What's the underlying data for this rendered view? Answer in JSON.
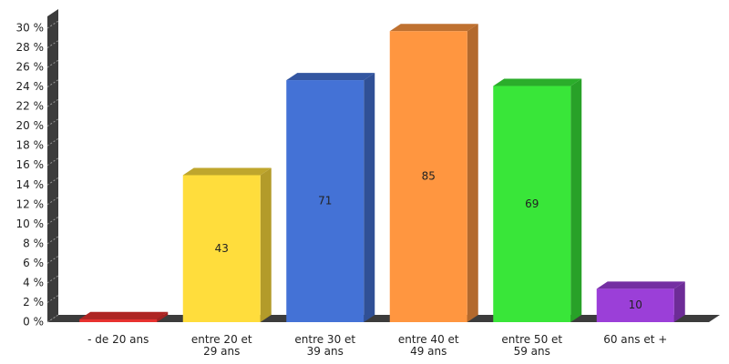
{
  "chart_data": {
    "type": "bar3d",
    "categories": [
      "- de 20 ans",
      "entre 20 et\n29 ans",
      "entre 30 et\n39 ans",
      "entre 40 et\n49 ans",
      "entre 50 et\n59 ans",
      "60 ans et +"
    ],
    "values": [
      0.3,
      15.0,
      24.7,
      29.7,
      24.1,
      3.4
    ],
    "bar_labels": [
      null,
      43,
      71,
      85,
      69,
      10
    ],
    "colors": [
      "#e8312f",
      "#ffdd3c",
      "#4472d6",
      "#ff9640",
      "#39e639",
      "#9b3fd8"
    ],
    "ylim": [
      0,
      30
    ],
    "yticks": [
      {
        "value": 0,
        "label": "0 %"
      },
      {
        "value": 2,
        "label": "2 %"
      },
      {
        "value": 4,
        "label": "4 %"
      },
      {
        "value": 6,
        "label": "6 %"
      },
      {
        "value": 8,
        "label": "8 %"
      },
      {
        "value": 10,
        "label": "10 %"
      },
      {
        "value": 12,
        "label": "12 %"
      },
      {
        "value": 14,
        "label": "14 %"
      },
      {
        "value": 16,
        "label": "16 %"
      },
      {
        "value": 18,
        "label": "18 %"
      },
      {
        "value": 20,
        "label": "20 %"
      },
      {
        "value": 22,
        "label": "22 %"
      },
      {
        "value": 24,
        "label": "24 %"
      },
      {
        "value": 26,
        "label": "26 %"
      },
      {
        "value": 28,
        "label": "28 %"
      },
      {
        "value": 30,
        "label": "30 %"
      }
    ]
  }
}
